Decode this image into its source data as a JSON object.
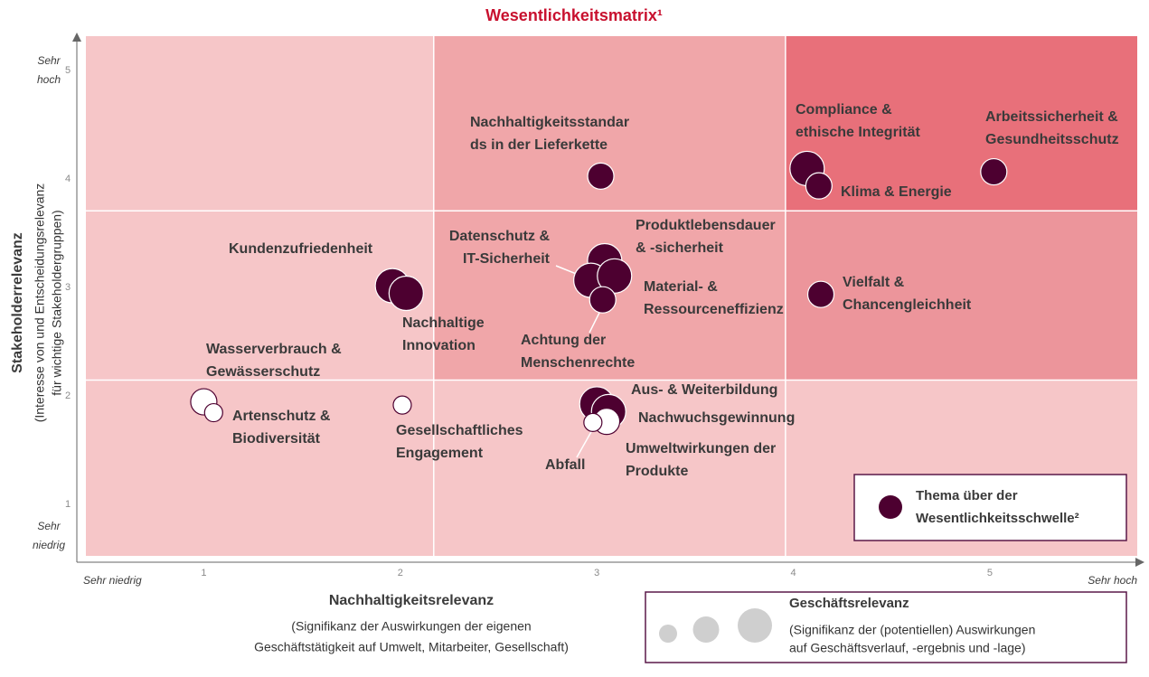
{
  "chart_data": {
    "type": "bubble",
    "title": "Wesentlichkeitsmatrix¹",
    "x_label": "Nachhaltigkeitsrelevanz",
    "x_sublabel": [
      "(Signifikanz der Auswirkungen der eigenen",
      "Geschäftstätigkeit auf Umwelt,  Mitarbeiter, Gesellschaft)"
    ],
    "y_label": "Stakeholderrelevanz",
    "y_sublabel": [
      "(Interesse von und Entscheidungsrelevanz",
      "für wichtige Stakeholdergruppen)"
    ],
    "x_end_labels": [
      "Sehr niedrig",
      "Sehr hoch"
    ],
    "y_end_labels": [
      [
        "Sehr",
        "niedrig"
      ],
      [
        "Sehr",
        "hoch"
      ]
    ],
    "xlim": [
      0.4,
      5.75
    ],
    "ylim": [
      0.56,
      5.35
    ],
    "xticks": [
      1,
      2,
      3,
      4,
      5
    ],
    "yticks": [
      1,
      2,
      3,
      4,
      5
    ],
    "grid": false,
    "x_thresholds": [
      2.17,
      3.96
    ],
    "y_thresholds": [
      2.18,
      3.74
    ],
    "zone_colors": [
      [
        "#f6c6c8",
        "#f6c6c8",
        "#f6c6c8"
      ],
      [
        "#f6c6c8",
        "#f0a6a9",
        "#ec959b"
      ],
      [
        "#f6c6c8",
        "#f0a6a9",
        "#e8707a"
      ]
    ],
    "fill_color": "#4d0030",
    "open_color": "#ffffff",
    "labels": [
      [
        "Compliance &",
        "ethische Integrität"
      ],
      [
        "Klima & Energie"
      ],
      [
        "Arbeitssicherheit &",
        "Gesundheitsschutz"
      ],
      [
        "Nachhaltigkeitsstandar",
        "ds in der Lieferkette"
      ],
      [
        "Kundenzufriedenheit"
      ],
      [
        "Nachhaltige",
        "Innovation"
      ],
      [
        "Produktlebensdauer",
        "& -sicherheit"
      ],
      [
        "Datenschutz &",
        "IT-Sicherheit"
      ],
      [
        "Material- &",
        "Ressourceneffizienz"
      ],
      [
        "Achtung der",
        "Menschenrechte"
      ],
      [
        "Vielfalt &",
        "Chancengleichheit"
      ],
      [
        "Wasserverbrauch &",
        "Gewässerschutz"
      ],
      [
        "Artenschutz &",
        "Biodiversität"
      ],
      [
        "Gesellschaftliches",
        "Engagement"
      ],
      [
        "Aus- & Weiterbildung"
      ],
      [
        "Nachwuchsgewinnung"
      ],
      [
        "Umweltwirkungen der",
        "Produkte"
      ],
      [
        "Abfall"
      ]
    ],
    "x": [
      4.07,
      4.13,
      5.02,
      3.02,
      1.96,
      2.03,
      3.04,
      2.97,
      3.09,
      3.03,
      4.14,
      1.0,
      1.05,
      2.01,
      3.0,
      3.06,
      3.05,
      2.98
    ],
    "values": [
      4.13,
      3.97,
      4.1,
      4.06,
      3.05,
      2.98,
      3.28,
      3.1,
      3.14,
      2.92,
      2.97,
      1.98,
      1.88,
      1.95,
      1.96,
      1.89,
      1.8,
      1.79
    ],
    "sizes": [
      3,
      2,
      2,
      2,
      3,
      3,
      3,
      3,
      3,
      2,
      2,
      2,
      1,
      1,
      3,
      3,
      2,
      1
    ],
    "material": [
      true,
      true,
      true,
      true,
      true,
      true,
      true,
      true,
      true,
      true,
      true,
      false,
      false,
      false,
      true,
      true,
      false,
      false
    ],
    "legend": {
      "text": [
        "Thema über der",
        "Wesentlichkeitsschwelle²"
      ]
    },
    "size_legend": {
      "title": "Geschäftsrelevanz",
      "text": [
        "(Signifikanz  der (potentiellen) Auswirkungen",
        "auf Geschäftsverlauf, -ergebnis und -lage)"
      ],
      "sizes": [
        1,
        2,
        3
      ],
      "color": "#cfcfcf"
    }
  }
}
